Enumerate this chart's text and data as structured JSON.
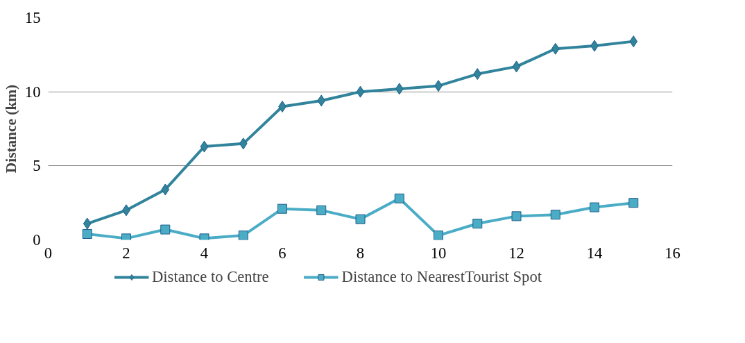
{
  "chart_data": {
    "type": "line",
    "ylabel": "Distance (km)",
    "x": [
      1,
      2,
      3,
      4,
      5,
      6,
      7,
      8,
      9,
      10,
      11,
      12,
      13,
      14,
      15
    ],
    "series": [
      {
        "name": "Distance to Centre",
        "color": "#31849b",
        "marker": "diamond",
        "values": [
          1.1,
          2.0,
          3.4,
          6.3,
          6.5,
          9.0,
          9.4,
          10.0,
          10.2,
          10.4,
          11.2,
          11.7,
          12.9,
          13.1,
          13.4
        ]
      },
      {
        "name": "Distance to NearestTourist Spot",
        "color": "#4bacc6",
        "marker": "square",
        "values": [
          0.4,
          0.1,
          0.7,
          0.1,
          0.3,
          2.1,
          2.0,
          1.4,
          2.8,
          0.3,
          1.1,
          1.6,
          1.7,
          2.2,
          2.5
        ]
      }
    ],
    "xlim": [
      0,
      16
    ],
    "xticks": [
      0,
      2,
      4,
      6,
      8,
      10,
      12,
      14,
      16
    ],
    "ylim": [
      0,
      15
    ],
    "yticks": [
      0,
      5,
      10,
      15
    ],
    "grid": "y",
    "legend": "bottom",
    "line_style": "solid"
  }
}
